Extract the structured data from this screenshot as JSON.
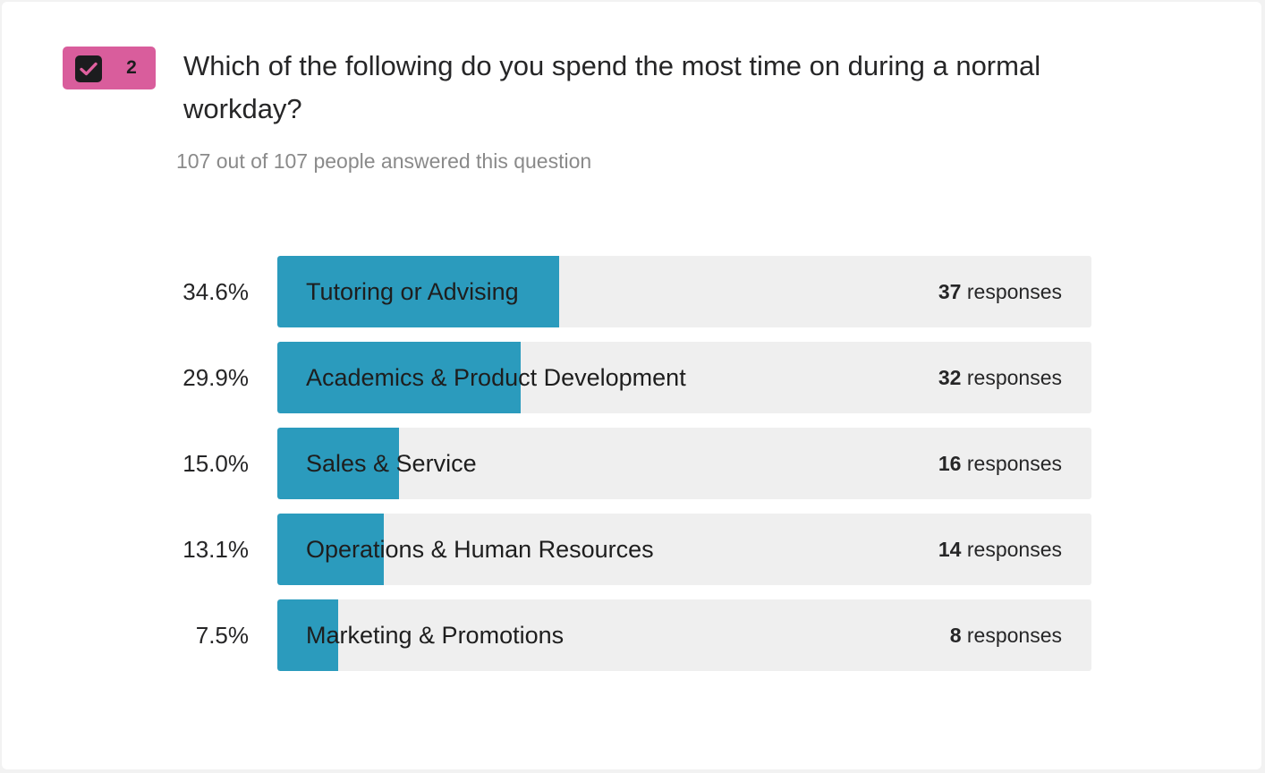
{
  "question": {
    "number": "2",
    "title": "Which of the following do you spend the most time on during a normal workday?",
    "subtitle": "107 out of 107 people answered this question",
    "type_icon": "checkbox-icon"
  },
  "colors": {
    "badge": "#d95d9c",
    "bar_fill": "#2b9bbd",
    "bar_track": "#efefef"
  },
  "responses_word": "responses",
  "chart_data": {
    "type": "bar",
    "orientation": "horizontal",
    "categories": [
      "Tutoring or Advising",
      "Academics & Product Development",
      "Sales & Service",
      "Operations & Human Resources",
      "Marketing & Promotions"
    ],
    "percent_labels": [
      "34.6%",
      "29.9%",
      "15.0%",
      "13.1%",
      "7.5%"
    ],
    "percent_values": [
      34.6,
      29.9,
      15.0,
      13.1,
      7.5
    ],
    "values": [
      37,
      32,
      16,
      14,
      8
    ],
    "counts": [
      "37",
      "32",
      "16",
      "14",
      "8"
    ],
    "total": 107,
    "title": "Which of the following do you spend the most time on during a normal workday?"
  }
}
